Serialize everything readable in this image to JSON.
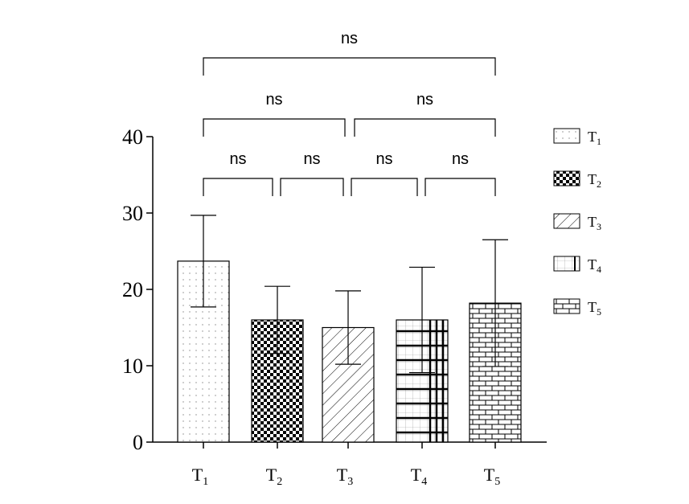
{
  "chart_data": {
    "type": "bar",
    "categories": [
      "T1",
      "T2",
      "T3",
      "T4",
      "T5"
    ],
    "category_display": [
      {
        "base": "T",
        "sub": "1"
      },
      {
        "base": "T",
        "sub": "2"
      },
      {
        "base": "T",
        "sub": "3"
      },
      {
        "base": "T",
        "sub": "4"
      },
      {
        "base": "T",
        "sub": "5"
      }
    ],
    "values": [
      23.7,
      16.0,
      15.0,
      16.0,
      18.2
    ],
    "error": [
      6.0,
      4.4,
      4.8,
      6.9,
      8.3
    ],
    "ylim": [
      0,
      40
    ],
    "yticks": [
      0,
      10,
      20,
      30,
      40
    ],
    "xlabel": "",
    "ylabel": "",
    "grid": false,
    "legend_position": "right",
    "patterns": [
      "dotted",
      "checker",
      "diagonal-hatch",
      "grid-with-thick-lines",
      "brick"
    ],
    "significance": [
      {
        "from": 0,
        "to": 1,
        "label": "ns",
        "level": 1
      },
      {
        "from": 1,
        "to": 2,
        "label": "ns",
        "level": 1
      },
      {
        "from": 2,
        "to": 3,
        "label": "ns",
        "level": 1
      },
      {
        "from": 3,
        "to": 4,
        "label": "ns",
        "level": 1
      },
      {
        "from": 0,
        "to": 2,
        "label": "ns",
        "level": 2
      },
      {
        "from": 2,
        "to": 4,
        "label": "ns",
        "level": 2
      },
      {
        "from": 0,
        "to": 4,
        "label": "ns",
        "level": 3
      }
    ]
  }
}
